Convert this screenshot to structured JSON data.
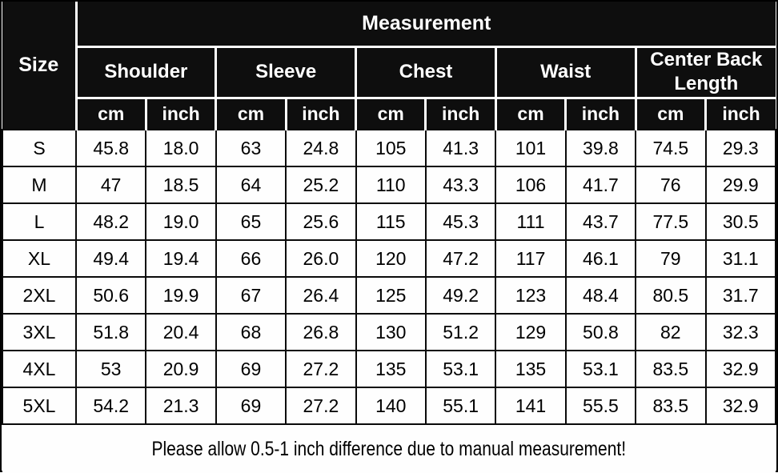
{
  "chart_data": {
    "type": "table",
    "title": "Measurement",
    "size_column_header": "Size",
    "measure_groups": [
      "Shoulder",
      "Sleeve",
      "Chest",
      "Waist",
      "Center Back Length"
    ],
    "unit_subheaders": [
      "cm",
      "inch"
    ],
    "rows": [
      {
        "size": "S",
        "values": [
          "45.8",
          "18.0",
          "63",
          "24.8",
          "105",
          "41.3",
          "101",
          "39.8",
          "74.5",
          "29.3"
        ]
      },
      {
        "size": "M",
        "values": [
          "47",
          "18.5",
          "64",
          "25.2",
          "110",
          "43.3",
          "106",
          "41.7",
          "76",
          "29.9"
        ]
      },
      {
        "size": "L",
        "values": [
          "48.2",
          "19.0",
          "65",
          "25.6",
          "115",
          "45.3",
          "111",
          "43.7",
          "77.5",
          "30.5"
        ]
      },
      {
        "size": "XL",
        "values": [
          "49.4",
          "19.4",
          "66",
          "26.0",
          "120",
          "47.2",
          "117",
          "46.1",
          "79",
          "31.1"
        ]
      },
      {
        "size": "2XL",
        "values": [
          "50.6",
          "19.9",
          "67",
          "26.4",
          "125",
          "49.2",
          "123",
          "48.4",
          "80.5",
          "31.7"
        ]
      },
      {
        "size": "3XL",
        "values": [
          "51.8",
          "20.4",
          "68",
          "26.8",
          "130",
          "51.2",
          "129",
          "50.8",
          "82",
          "32.3"
        ]
      },
      {
        "size": "4XL",
        "values": [
          "53",
          "20.9",
          "69",
          "27.2",
          "135",
          "53.1",
          "135",
          "53.1",
          "83.5",
          "32.9"
        ]
      },
      {
        "size": "5XL",
        "values": [
          "54.2",
          "21.3",
          "69",
          "27.2",
          "140",
          "55.1",
          "141",
          "55.5",
          "83.5",
          "32.9"
        ]
      }
    ],
    "footnote": "Please allow 0.5-1 inch difference due to manual measurement!",
    "layout": {
      "grid": "on",
      "header_rows": 3,
      "data_rows": 8,
      "value_columns": 10
    }
  },
  "colors": {
    "header_bg": "#0e0e0e",
    "header_text": "#ffffff",
    "header_grid": "#ffffff",
    "body_bg": "#fefefe",
    "body_text": "#000000",
    "body_grid": "#0a0a0a"
  }
}
